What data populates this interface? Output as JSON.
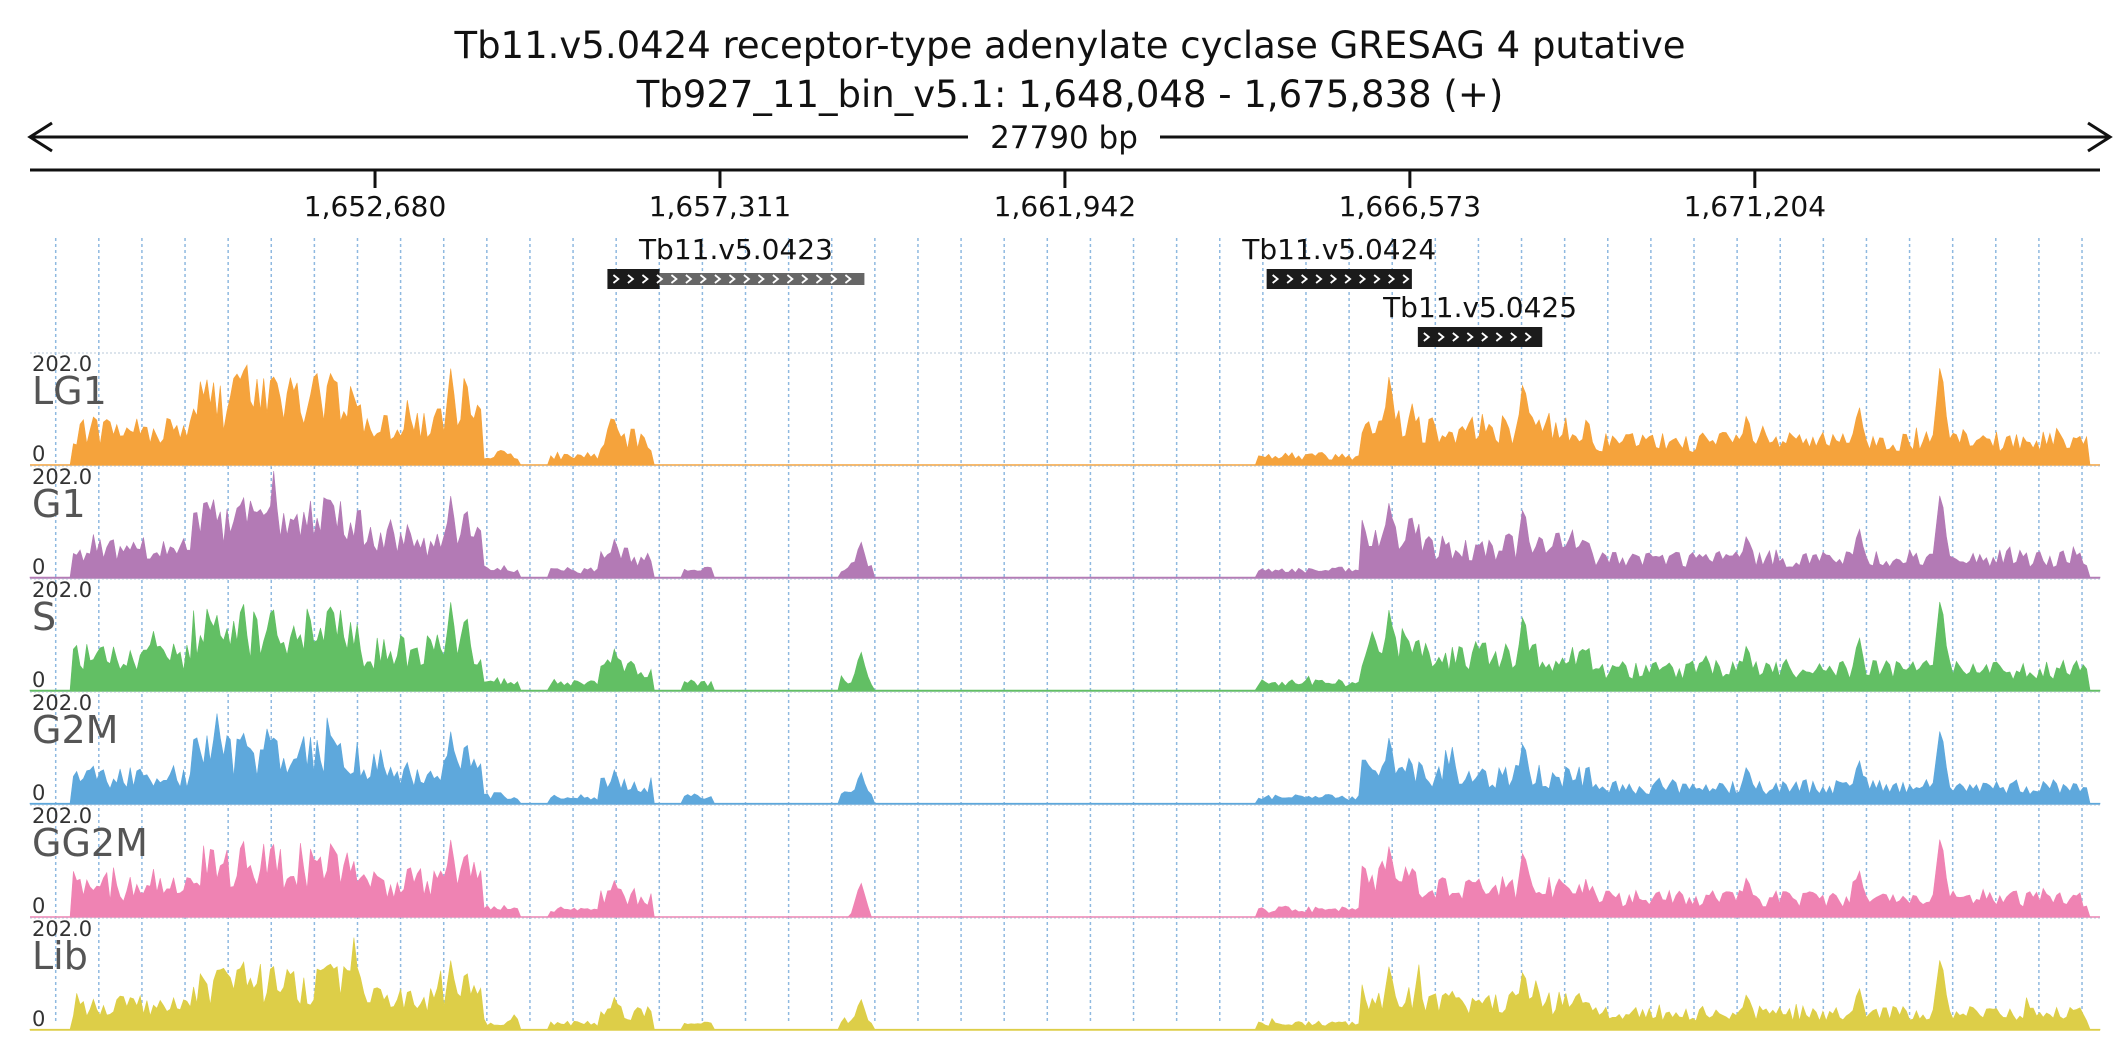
{
  "header": {
    "title": "Tb11.v5.0424  receptor-type adenylate cyclase GRESAG 4  putative",
    "subtitle": "Tb927_11_bin_v5.1: 1,648,048 - 1,675,838 (+)",
    "span_label": "27790 bp"
  },
  "chart_data": {
    "type": "area",
    "region": {
      "chromosome": "Tb927_11_bin_v5.1",
      "start": 1648048,
      "end": 1675838,
      "strand": "+"
    },
    "axis_ticks": [
      {
        "value": 1652680,
        "label": "1,652,680"
      },
      {
        "value": 1657311,
        "label": "1,657,311"
      },
      {
        "value": 1661942,
        "label": "1,661,942"
      },
      {
        "value": 1666573,
        "label": "1,666,573"
      },
      {
        "value": 1671204,
        "label": "1,671,204"
      }
    ],
    "genes": [
      {
        "name": "Tb11.v5.0423",
        "start": 1655800,
        "end": 1659250,
        "cds_start": 1655800,
        "cds_end": 1656500,
        "strand": "+",
        "row": 0
      },
      {
        "name": "Tb11.v5.0424",
        "start": 1664650,
        "end": 1666600,
        "cds_start": 1664650,
        "cds_end": 1666600,
        "strand": "+",
        "row": 0
      },
      {
        "name": "Tb11.v5.0425",
        "start": 1666680,
        "end": 1668350,
        "cds_start": 1666680,
        "cds_end": 1668350,
        "strand": "+",
        "row": 1
      }
    ],
    "y_range": [
      0,
      202.0
    ],
    "y_max_label": "202.0",
    "y_min_label": "0",
    "tracks": [
      {
        "name": "LG1",
        "color": "#f5a33c",
        "scale": 1.0,
        "profile": "lg1"
      },
      {
        "name": "G1",
        "color": "#b37ab5",
        "scale": 0.85,
        "profile": "g"
      },
      {
        "name": "S",
        "color": "#62bf64",
        "scale": 0.92,
        "profile": "g"
      },
      {
        "name": "G2M",
        "color": "#5ea8dc",
        "scale": 0.75,
        "profile": "g"
      },
      {
        "name": "GG2M",
        "color": "#ef83b3",
        "scale": 0.8,
        "profile": "gg"
      },
      {
        "name": "Lib",
        "color": "#ddce48",
        "scale": 0.72,
        "profile": "g"
      }
    ],
    "coverage_regions": [
      {
        "start": 1648600,
        "end": 1650200,
        "level": 0.4
      },
      {
        "start": 1650200,
        "end": 1652500,
        "level": 0.72
      },
      {
        "start": 1652500,
        "end": 1654100,
        "level": 0.48
      },
      {
        "start": 1654100,
        "end": 1654600,
        "level": 0.12
      },
      {
        "start": 1655000,
        "end": 1655700,
        "level": 0.1
      },
      {
        "start": 1655700,
        "end": 1656400,
        "level": 0.28
      },
      {
        "start": 1656800,
        "end": 1657200,
        "level": 0.1
      },
      {
        "start": 1658900,
        "end": 1659350,
        "level": 0.14
      },
      {
        "start": 1664500,
        "end": 1665900,
        "level": 0.1
      },
      {
        "start": 1665900,
        "end": 1666700,
        "level": 0.55
      },
      {
        "start": 1666700,
        "end": 1669000,
        "level": 0.42
      },
      {
        "start": 1669000,
        "end": 1675700,
        "level": 0.26
      }
    ],
    "coverage_peaks": [
      {
        "pos": 1650900,
        "height": 1.0
      },
      {
        "pos": 1651300,
        "height": 0.96
      },
      {
        "pos": 1652100,
        "height": 0.98
      },
      {
        "pos": 1653700,
        "height": 0.93
      },
      {
        "pos": 1653900,
        "height": 0.85
      },
      {
        "pos": 1655900,
        "height": 0.45
      },
      {
        "pos": 1659200,
        "height": 0.42
      },
      {
        "pos": 1666300,
        "height": 0.88
      },
      {
        "pos": 1668100,
        "height": 0.84
      },
      {
        "pos": 1671100,
        "height": 0.5
      },
      {
        "pos": 1672600,
        "height": 0.58
      },
      {
        "pos": 1673700,
        "height": 1.0
      },
      {
        "pos": 1675500,
        "height": 0.3
      }
    ]
  }
}
